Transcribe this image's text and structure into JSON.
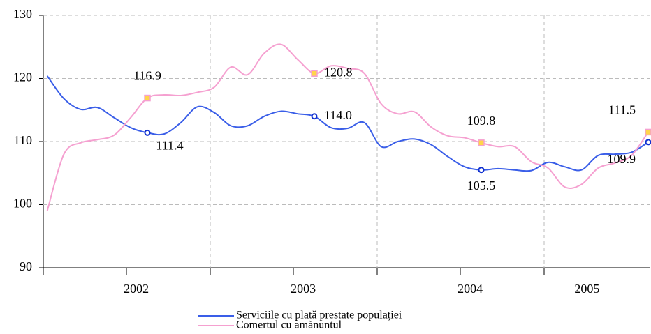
{
  "chart_data": {
    "type": "line",
    "categories": [
      null,
      null,
      null,
      null,
      null,
      "2002",
      null,
      null,
      null,
      null,
      null,
      null,
      null,
      null,
      null,
      "2003",
      null,
      null,
      null,
      null,
      null,
      null,
      null,
      null,
      null,
      "2004",
      null,
      null,
      null,
      null,
      null,
      null,
      "2005",
      null,
      null,
      null,
      null
    ],
    "series": [
      {
        "name": "Serviciile cu plată prestate populației",
        "color": "#3a5ee8",
        "values": [
          120.4,
          116.8,
          115.1,
          115.4,
          113.8,
          112.2,
          111.4,
          111.2,
          113.0,
          115.5,
          114.6,
          112.5,
          112.5,
          114.0,
          114.8,
          114.4,
          114.0,
          112.2,
          112.1,
          113.0,
          109.2,
          110.0,
          110.4,
          109.5,
          107.6,
          106.0,
          105.5,
          105.7,
          105.5,
          105.4,
          106.7,
          106.0,
          105.5,
          107.8,
          108.0,
          108.3,
          109.9
        ],
        "value_labels": [
          null,
          null,
          null,
          null,
          null,
          null,
          "111.4",
          null,
          null,
          null,
          null,
          null,
          null,
          null,
          null,
          null,
          "114.0",
          null,
          null,
          null,
          null,
          null,
          null,
          null,
          null,
          null,
          "105.5",
          null,
          null,
          null,
          null,
          null,
          null,
          null,
          null,
          null,
          "109.9"
        ]
      },
      {
        "name": "Comertul cu amănuntul",
        "color": "#f5a0d0",
        "values": [
          99.0,
          108.0,
          109.8,
          110.3,
          111.0,
          113.8,
          116.9,
          117.4,
          117.3,
          117.8,
          118.6,
          121.8,
          120.6,
          124.0,
          125.4,
          123.0,
          120.8,
          122.0,
          121.6,
          120.8,
          116.0,
          114.4,
          114.7,
          112.3,
          110.9,
          110.6,
          109.8,
          109.2,
          109.2,
          106.8,
          105.8,
          102.8,
          103.2,
          105.8,
          106.6,
          107.8,
          111.5
        ],
        "value_labels": [
          null,
          null,
          null,
          null,
          null,
          null,
          "116.9",
          null,
          null,
          null,
          null,
          null,
          null,
          null,
          null,
          null,
          "120.8",
          null,
          null,
          null,
          null,
          null,
          null,
          null,
          null,
          null,
          "109.8",
          null,
          null,
          null,
          null,
          null,
          null,
          null,
          null,
          null,
          "111.5"
        ]
      }
    ],
    "ylim": [
      90,
      130
    ],
    "yticks": [
      90,
      100,
      110,
      120,
      130
    ],
    "grid": true
  }
}
